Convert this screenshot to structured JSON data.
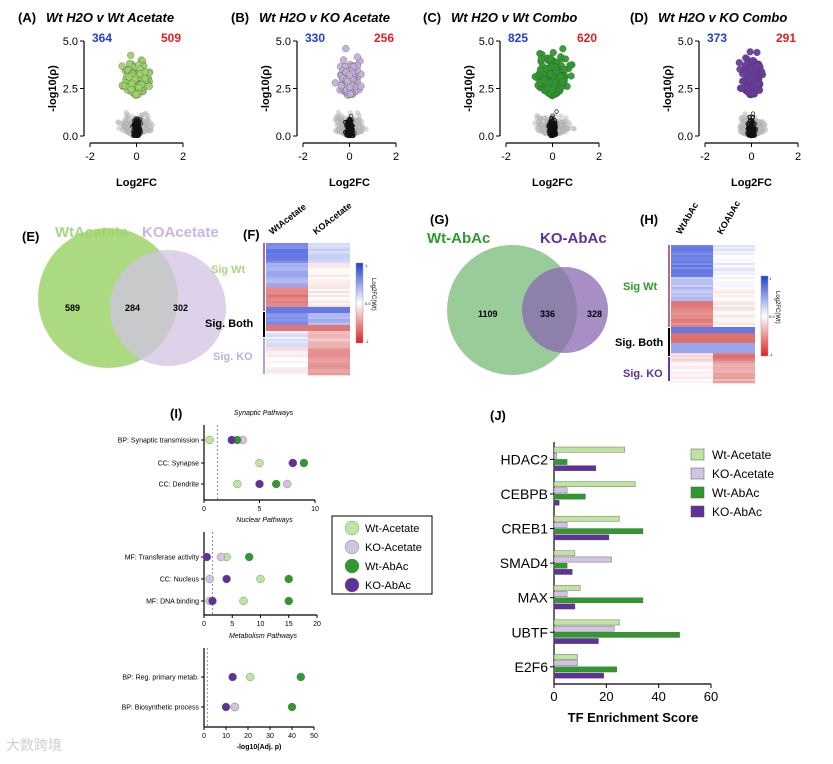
{
  "volcano": [
    {
      "letter": "(A)",
      "title": "Wt H2O v Wt Acetate",
      "down": "364",
      "up": "509",
      "color": "#9ed36b"
    },
    {
      "letter": "(B)",
      "title": "Wt H2O v KO Acetate",
      "down": "330",
      "up": "256",
      "color": "#c3aed6"
    },
    {
      "letter": "(C)",
      "title": "Wt H2O v Wt Combo",
      "down": "825",
      "up": "620",
      "color": "#2e9a2e"
    },
    {
      "letter": "(D)",
      "title": "Wt H2O v KO Combo",
      "down": "373",
      "up": "291",
      "color": "#6a3aa0"
    }
  ],
  "volcano_axes": {
    "ylabel": "-log10(ρ)",
    "xlabel": "Log2FC",
    "xticks": [
      "-2",
      "0",
      "2"
    ],
    "yticks": [
      "5.0",
      "2.5",
      "0.0"
    ]
  },
  "venn_E": {
    "letter": "(E)",
    "left_label": "WtAcetate",
    "right_label": "KOAcetate",
    "left": "589",
    "both": "284",
    "right": "302"
  },
  "heat_F": {
    "letter": "(F)",
    "cols": [
      "WtAcetate",
      "KOAcetate"
    ],
    "sig_wt": "Sig Wt",
    "sig_both": "Sig. Both",
    "sig_ko": "Sig. KO",
    "legend_title": "Log2FC(Wt)",
    "legend_hi": "1",
    "legend_mid": "0.0",
    "legend_lo": "-1"
  },
  "venn_G": {
    "letter": "(G)",
    "left_label": "Wt-AbAc",
    "right_label": "KO-AbAc",
    "left": "1109",
    "both": "336",
    "right": "328"
  },
  "heat_H": {
    "letter": "(H)",
    "cols": [
      "WtAbAc",
      "KOAbAc"
    ],
    "sig_wt": "Sig Wt",
    "sig_both": "Sig. Both",
    "sig_ko": "Sig. KO",
    "legend_title": "Log2FC(Wt)",
    "legend_hi": "1",
    "legend_mid": "0.0",
    "legend_lo": "-1"
  },
  "panel_I": {
    "letter": "(I)",
    "xlabel": "-log10(Adj. p)",
    "legend": [
      "Wt-Acetate",
      "KO-Acetate",
      "Wt-AbAc",
      "KO-AbAc"
    ]
  },
  "panel_J": {
    "letter": "(J)",
    "xlabel": "TF Enrichment Score",
    "legend": [
      "Wt-Acetate",
      "KO-Acetate",
      "Wt-AbAc",
      "KO-AbAc"
    ]
  },
  "colors": {
    "wt_acetate": "#bfe3a0",
    "ko_acetate": "#d2c3e3",
    "wt_abac": "#2e9a2e",
    "ko_abac": "#5e3296",
    "up": "#e02020",
    "down": "#1f3fcf"
  },
  "chart_data": [
    {
      "type": "scatter",
      "panel": "I-synaptic",
      "title": "Synaptic Pathways",
      "categories": [
        "BP: Synaptic transmission",
        "CC: Synapse",
        "CC: Dendrite"
      ],
      "xlim": [
        0,
        10
      ],
      "xticks": [
        0,
        5,
        10
      ],
      "series": [
        {
          "name": "Wt-Acetate",
          "values": [
            0.5,
            5,
            3
          ]
        },
        {
          "name": "KO-Acetate",
          "values": [
            3.5,
            8,
            7.5
          ]
        },
        {
          "name": "Wt-AbAc",
          "values": [
            3,
            9,
            6.5
          ]
        },
        {
          "name": "KO-AbAc",
          "values": [
            2.5,
            8,
            5
          ]
        }
      ]
    },
    {
      "type": "scatter",
      "panel": "I-nuclear",
      "title": "Nuclear Pathways",
      "categories": [
        "MF: Transferase activity",
        "CC: Nucleus",
        "MF: DNA binding"
      ],
      "xlim": [
        0,
        20
      ],
      "xticks": [
        0,
        5,
        10,
        15,
        20
      ],
      "series": [
        {
          "name": "Wt-Acetate",
          "values": [
            4,
            10,
            7
          ]
        },
        {
          "name": "KO-Acetate",
          "values": [
            3,
            1,
            1
          ]
        },
        {
          "name": "Wt-AbAc",
          "values": [
            8,
            15,
            15
          ]
        },
        {
          "name": "KO-AbAc",
          "values": [
            0.5,
            4,
            1.5
          ]
        }
      ]
    },
    {
      "type": "scatter",
      "panel": "I-metabolism",
      "title": "Metabolism Pathways",
      "categories": [
        "BP: Reg. primary metab.",
        "BP: Biosynthetic process"
      ],
      "xlim": [
        0,
        50
      ],
      "xticks": [
        0,
        10,
        20,
        30,
        40,
        50
      ],
      "series": [
        {
          "name": "Wt-Acetate",
          "values": [
            21,
            14
          ]
        },
        {
          "name": "KO-Acetate",
          "values": [
            null,
            14
          ]
        },
        {
          "name": "Wt-AbAc",
          "values": [
            44,
            40
          ]
        },
        {
          "name": "KO-AbAc",
          "values": [
            13,
            10
          ]
        }
      ]
    },
    {
      "type": "bar",
      "panel": "J",
      "orientation": "horizontal",
      "categories": [
        "HDAC2",
        "CEBPB",
        "CREB1",
        "SMAD4",
        "MAX",
        "UBTF",
        "E2F6"
      ],
      "xlim": [
        0,
        60
      ],
      "xticks": [
        0,
        20,
        40,
        60
      ],
      "xlabel": "TF Enrichment Score",
      "series": [
        {
          "name": "Wt-Acetate",
          "values": [
            27,
            31,
            25,
            8,
            10,
            25,
            9
          ]
        },
        {
          "name": "KO-Acetate",
          "values": [
            1,
            5,
            5,
            22,
            5,
            23,
            9
          ]
        },
        {
          "name": "Wt-AbAc",
          "values": [
            5,
            12,
            34,
            5,
            34,
            48,
            24
          ]
        },
        {
          "name": "KO-AbAc",
          "values": [
            16,
            2,
            21,
            7,
            8,
            17,
            19
          ]
        }
      ]
    }
  ],
  "watermark": "大数跨境"
}
